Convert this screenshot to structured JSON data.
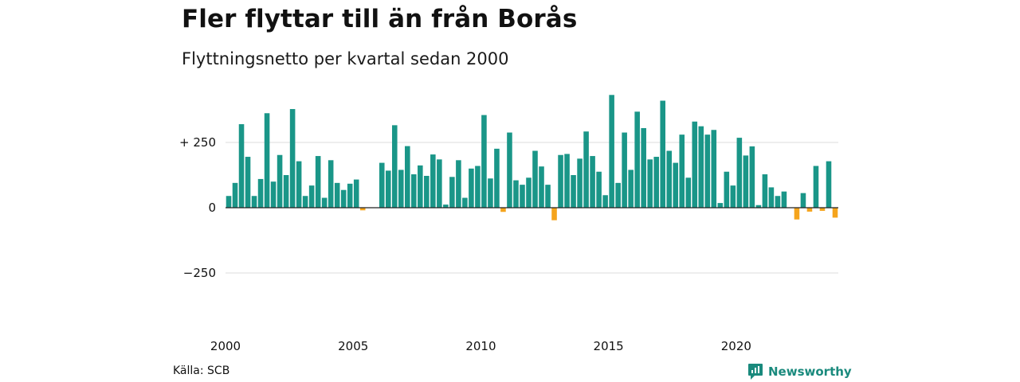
{
  "title": "Fler flyttar till än från Borås",
  "subtitle": "Flyttningsnetto per kvartal sedan 2000",
  "source": "Källa: SCB",
  "brand": {
    "name": "Newsworthy",
    "icon": "newsworthy-logo-icon",
    "color": "#1a8a7d"
  },
  "colors": {
    "positive": "#1a9688",
    "negative": "#f5a41c",
    "gridline": "#dddddd",
    "zeroline": "#222222"
  },
  "chart_data": {
    "type": "bar",
    "title": "Fler flyttar till än från Borås",
    "subtitle": "Flyttningsnetto per kvartal sedan 2000",
    "xlabel": "",
    "ylabel": "",
    "ylim": [
      -420,
      450
    ],
    "xlim": [
      2000,
      2023.5
    ],
    "grid": true,
    "y_ticks": [
      {
        "value": 250,
        "label": "+ 250"
      },
      {
        "value": 0,
        "label": "0"
      },
      {
        "value": -250,
        "label": "−250"
      }
    ],
    "x_ticks": [
      {
        "value": 2000,
        "label": "2000"
      },
      {
        "value": 2005,
        "label": "2005"
      },
      {
        "value": 2010,
        "label": "2010"
      },
      {
        "value": 2015,
        "label": "2015"
      },
      {
        "value": 2020,
        "label": "2020"
      }
    ],
    "start_year": 2000,
    "periods_per_year": 4,
    "values": [
      45,
      95,
      320,
      195,
      45,
      110,
      362,
      100,
      202,
      125,
      378,
      178,
      45,
      85,
      198,
      38,
      182,
      95,
      68,
      92,
      108,
      -10,
      0,
      0,
      172,
      142,
      316,
      145,
      236,
      128,
      162,
      122,
      204,
      185,
      12,
      118,
      182,
      38,
      150,
      160,
      355,
      112,
      226,
      -16,
      288,
      105,
      88,
      115,
      218,
      158,
      88,
      -48,
      202,
      206,
      125,
      188,
      292,
      198,
      138,
      48,
      432,
      95,
      288,
      145,
      368,
      305,
      185,
      195,
      410,
      218,
      172,
      280,
      115,
      330,
      312,
      280,
      298,
      18,
      138,
      85,
      268,
      200,
      235,
      10,
      128,
      78,
      45,
      62,
      0,
      -45,
      56,
      -15,
      160,
      -12,
      178,
      -38
    ]
  }
}
